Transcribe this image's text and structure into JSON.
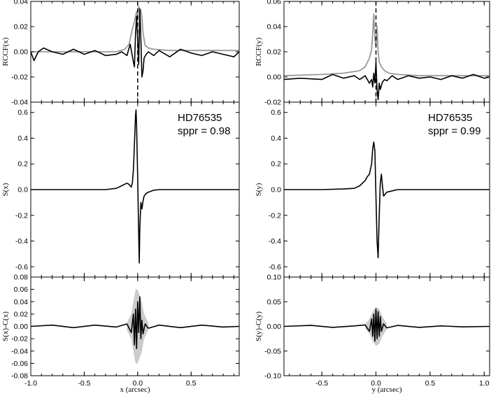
{
  "chart_data": [
    {
      "type": "line",
      "panel": "RCCF(x)",
      "ylabel": "RCCF(x)",
      "xlim": [
        -1.0,
        0.95
      ],
      "ylim": [
        -0.04,
        0.04
      ],
      "yticks": [
        "-0.04",
        "-0.02",
        "0.00",
        "0.02",
        "0.04"
      ],
      "xticks": [
        "-1.0",
        "-0.5",
        "0.0",
        "0.5"
      ],
      "dashed_marker_x": 0.0,
      "series": [
        {
          "color": "#999999",
          "x": [
            -1.0,
            -0.5,
            -0.2,
            -0.12,
            -0.08,
            -0.05,
            -0.03,
            -0.02,
            -0.01,
            0.0,
            0.01,
            0.02,
            0.03,
            0.04,
            0.05,
            0.07,
            0.1,
            0.15,
            0.3,
            0.95
          ],
          "y": [
            0.0,
            0.0,
            0.0,
            0.002,
            0.006,
            0.018,
            0.024,
            0.028,
            0.032,
            0.025,
            0.036,
            0.034,
            0.033,
            0.028,
            0.015,
            0.005,
            0.003,
            0.002,
            0.001,
            0.001
          ]
        },
        {
          "color": "#000000",
          "x": [
            -1.0,
            -0.97,
            -0.93,
            -0.88,
            -0.8,
            -0.7,
            -0.6,
            -0.5,
            -0.4,
            -0.3,
            -0.2,
            -0.15,
            -0.1,
            -0.07,
            -0.04,
            -0.03,
            -0.02,
            -0.01,
            0.0,
            0.01,
            0.02,
            0.03,
            0.04,
            0.05,
            0.06,
            0.08,
            0.1,
            0.15,
            0.2,
            0.3,
            0.4,
            0.5,
            0.6,
            0.7,
            0.8,
            0.9,
            0.95
          ],
          "y": [
            0.0,
            -0.007,
            0.0,
            0.003,
            0.0,
            -0.002,
            0.002,
            -0.002,
            0.001,
            -0.003,
            -0.002,
            0.0,
            -0.003,
            0.006,
            -0.008,
            -0.012,
            0.015,
            0.028,
            0.01,
            -0.01,
            0.034,
            0.01,
            -0.02,
            -0.015,
            -0.005,
            -0.002,
            0.0,
            -0.003,
            0.001,
            -0.004,
            0.002,
            -0.001,
            -0.003,
            0.0,
            -0.002,
            -0.004,
            0.0
          ]
        }
      ]
    },
    {
      "type": "line",
      "panel": "S(x)",
      "ylabel": "S(x)",
      "xlim": [
        -1.0,
        0.95
      ],
      "ylim": [
        -0.68,
        0.68
      ],
      "yticks": [
        "-0.6",
        "-0.4",
        "-0.2",
        "0.0",
        "0.2",
        "0.4",
        "0.6"
      ],
      "xticks": [
        "-1.0",
        "-0.5",
        "0.0",
        "0.5"
      ],
      "annotations": [
        "HD76535",
        "sppr = 0.98"
      ],
      "series": [
        {
          "color": "#000000",
          "x": [
            -1.0,
            -0.5,
            -0.3,
            -0.2,
            -0.15,
            -0.1,
            -0.08,
            -0.06,
            -0.05,
            -0.04,
            -0.03,
            -0.02,
            -0.015,
            -0.01,
            0.0,
            0.01,
            0.015,
            0.02,
            0.03,
            0.04,
            0.05,
            0.06,
            0.08,
            0.1,
            0.15,
            0.2,
            0.3,
            0.5,
            0.95
          ],
          "y": [
            0.0,
            0.0,
            0.0,
            0.01,
            0.03,
            0.05,
            0.04,
            0.02,
            0.05,
            0.15,
            0.35,
            0.58,
            0.62,
            0.5,
            0.1,
            -0.35,
            -0.57,
            -0.3,
            -0.1,
            -0.15,
            -0.09,
            -0.05,
            -0.03,
            -0.02,
            -0.005,
            0.0,
            0.0,
            0.0,
            0.0
          ]
        }
      ]
    },
    {
      "type": "line",
      "panel": "S(x)-C(x)",
      "ylabel": "S(x)-C(x)",
      "xlabel": "x (arcsec)",
      "xlim": [
        -1.0,
        0.95
      ],
      "ylim": [
        -0.08,
        0.08
      ],
      "yticks": [
        "-0.08",
        "-0.06",
        "-0.04",
        "-0.02",
        "0.00",
        "0.02",
        "0.04",
        "0.06",
        "0.08"
      ],
      "xticks": [
        "-1.0",
        "-0.5",
        "0.0",
        "0.5"
      ],
      "band": {
        "color": "#cccccc",
        "x": [
          -0.1,
          -0.06,
          -0.04,
          -0.02,
          0.0,
          0.02,
          0.04,
          0.06,
          0.1
        ],
        "upper": [
          0.006,
          0.02,
          0.04,
          0.06,
          0.06,
          0.05,
          0.04,
          0.02,
          0.006
        ],
        "lower": [
          -0.006,
          -0.02,
          -0.04,
          -0.06,
          -0.06,
          -0.05,
          -0.04,
          -0.02,
          -0.006
        ]
      },
      "series": [
        {
          "color": "#000000",
          "x": [
            -1.0,
            -0.8,
            -0.6,
            -0.4,
            -0.2,
            -0.1,
            -0.06,
            -0.04,
            -0.03,
            -0.02,
            -0.01,
            0.0,
            0.01,
            0.02,
            0.03,
            0.04,
            0.05,
            0.07,
            0.1,
            0.2,
            0.4,
            0.6,
            0.8,
            0.95
          ],
          "y": [
            0.0,
            0.002,
            -0.002,
            0.002,
            -0.001,
            0.004,
            -0.01,
            0.02,
            -0.03,
            0.028,
            -0.036,
            0.04,
            -0.01,
            0.048,
            -0.02,
            0.01,
            -0.012,
            0.004,
            -0.003,
            0.002,
            -0.002,
            0.002,
            -0.001,
            0.0
          ]
        }
      ]
    },
    {
      "type": "line",
      "panel": "RCCF(y)",
      "ylabel": "RCCF(y)",
      "xlim": [
        -0.85,
        1.05
      ],
      "ylim": [
        -0.02,
        0.06
      ],
      "yticks": [
        "-0.02",
        "0.00",
        "0.02",
        "0.04",
        "0.06"
      ],
      "xticks": [
        "-0.5",
        "0.0",
        "0.5",
        "1.0"
      ],
      "dashed_marker_x": 0.0,
      "series": [
        {
          "color": "#999999",
          "x": [
            -0.85,
            -0.5,
            -0.3,
            -0.15,
            -0.1,
            -0.06,
            -0.04,
            -0.03,
            -0.02,
            -0.01,
            0.0,
            0.01,
            0.02,
            0.03,
            0.05,
            0.08,
            0.12,
            0.2,
            0.4,
            0.7,
            1.05
          ],
          "y": [
            0.001,
            0.002,
            0.003,
            0.005,
            0.008,
            0.015,
            0.022,
            0.035,
            0.05,
            0.03,
            0.025,
            0.04,
            0.02,
            0.012,
            0.008,
            0.005,
            0.003,
            0.002,
            0.001,
            0.001,
            0.001
          ]
        },
        {
          "color": "#000000",
          "x": [
            -0.85,
            -0.7,
            -0.5,
            -0.4,
            -0.3,
            -0.2,
            -0.15,
            -0.1,
            -0.06,
            -0.04,
            -0.03,
            -0.02,
            -0.01,
            0.0,
            0.01,
            0.02,
            0.03,
            0.04,
            0.06,
            0.08,
            0.1,
            0.15,
            0.2,
            0.3,
            0.4,
            0.5,
            0.6,
            0.7,
            0.8,
            0.9,
            1.0,
            1.05
          ],
          "y": [
            -0.002,
            -0.001,
            -0.002,
            0.002,
            -0.001,
            0.001,
            -0.002,
            0.001,
            -0.005,
            -0.002,
            -0.008,
            0.003,
            -0.005,
            0.012,
            -0.01,
            -0.018,
            -0.005,
            -0.01,
            -0.004,
            -0.002,
            -0.003,
            0.001,
            -0.002,
            0.001,
            -0.001,
            0.0,
            -0.002,
            0.001,
            -0.001,
            0.002,
            -0.001,
            0.0
          ]
        }
      ]
    },
    {
      "type": "line",
      "panel": "S(y)",
      "ylabel": "S(y)",
      "xlim": [
        -0.85,
        1.05
      ],
      "ylim": [
        -0.68,
        0.68
      ],
      "yticks": [
        "-0.6",
        "-0.4",
        "-0.2",
        "0.0",
        "0.2",
        "0.4",
        "0.6"
      ],
      "xticks": [
        "-0.5",
        "0.0",
        "0.5",
        "1.0"
      ],
      "annotations": [
        "HD76535",
        "sppr = 0.99"
      ],
      "series": [
        {
          "color": "#000000",
          "x": [
            -0.85,
            -0.5,
            -0.3,
            -0.2,
            -0.15,
            -0.1,
            -0.08,
            -0.06,
            -0.04,
            -0.03,
            -0.02,
            -0.01,
            0.0,
            0.01,
            0.02,
            0.03,
            0.04,
            0.05,
            0.06,
            0.07,
            0.08,
            0.1,
            0.15,
            0.2,
            0.3,
            0.5,
            1.05
          ],
          "y": [
            0.0,
            0.0,
            0.005,
            0.01,
            0.03,
            0.07,
            0.1,
            0.12,
            0.2,
            0.32,
            0.37,
            0.3,
            -0.05,
            -0.4,
            -0.53,
            -0.2,
            0.05,
            0.12,
            0.03,
            -0.05,
            -0.04,
            -0.02,
            -0.01,
            0.0,
            0.0,
            0.0,
            0.0
          ]
        }
      ]
    },
    {
      "type": "line",
      "panel": "S(y)-C(y)",
      "ylabel": "S(y)-C(y)",
      "xlabel": "y (arcsec)",
      "xlim": [
        -0.85,
        1.05
      ],
      "ylim": [
        -0.1,
        0.1
      ],
      "yticks": [
        "-0.10",
        "-0.05",
        "0.00",
        "0.05",
        "0.10"
      ],
      "xticks": [
        "-0.5",
        "0.0",
        "0.5",
        "1.0"
      ],
      "band": {
        "color": "#cccccc",
        "x": [
          -0.1,
          -0.06,
          -0.03,
          0.0,
          0.03,
          0.06,
          0.1
        ],
        "upper": [
          0.005,
          0.015,
          0.03,
          0.04,
          0.035,
          0.02,
          0.005
        ],
        "lower": [
          -0.005,
          -0.015,
          -0.03,
          -0.04,
          -0.035,
          -0.02,
          -0.005
        ]
      },
      "series": [
        {
          "color": "#000000",
          "x": [
            -0.85,
            -0.6,
            -0.4,
            -0.2,
            -0.1,
            -0.06,
            -0.04,
            -0.03,
            -0.02,
            -0.01,
            0.0,
            0.01,
            0.02,
            0.03,
            0.04,
            0.05,
            0.07,
            0.1,
            0.2,
            0.4,
            0.6,
            0.8,
            1.05
          ],
          "y": [
            0.0,
            0.002,
            -0.002,
            0.001,
            0.003,
            -0.01,
            0.015,
            -0.02,
            0.025,
            -0.03,
            0.035,
            -0.025,
            0.03,
            -0.02,
            0.02,
            -0.01,
            0.005,
            -0.003,
            0.002,
            -0.002,
            0.001,
            -0.001,
            0.0
          ]
        }
      ]
    }
  ]
}
